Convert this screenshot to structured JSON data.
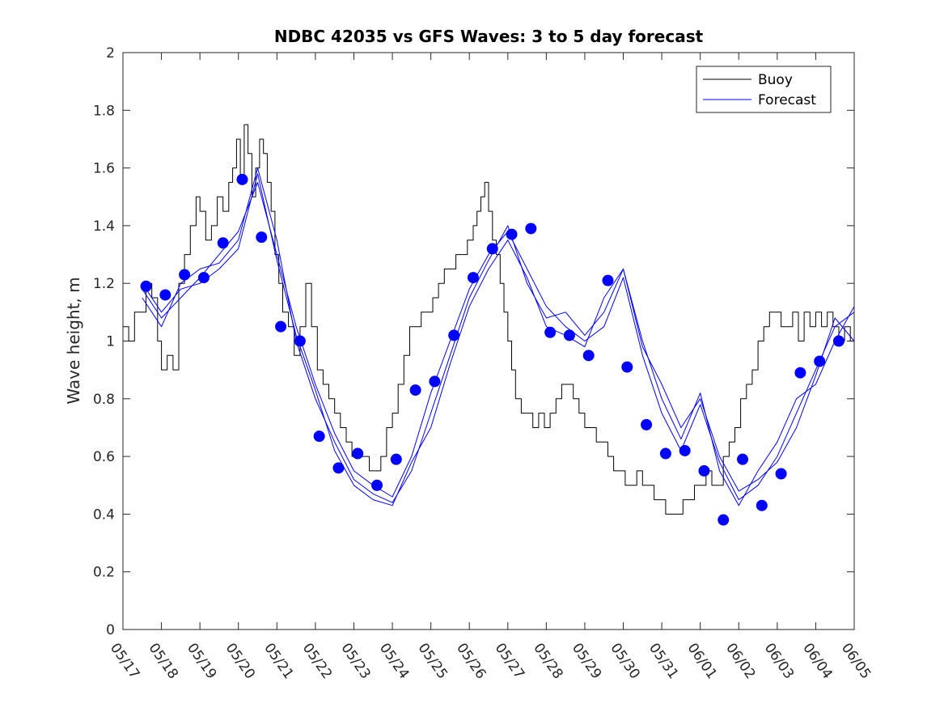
{
  "chart_data": {
    "type": "line",
    "title": "NDBC 42035 vs GFS Waves: 3 to 5 day forecast",
    "xlabel": "",
    "ylabel": "Wave height, m",
    "xlim": [
      "05/17",
      "06/05"
    ],
    "ylim": [
      0,
      2
    ],
    "x_ticks": [
      "05/17",
      "05/18",
      "05/19",
      "05/20",
      "05/21",
      "05/22",
      "05/23",
      "05/24",
      "05/25",
      "05/26",
      "05/27",
      "05/28",
      "05/29",
      "05/30",
      "05/31",
      "06/01",
      "06/02",
      "06/03",
      "06/04",
      "06/05"
    ],
    "y_ticks": [
      "0",
      "0.2",
      "0.4",
      "0.6",
      "0.8",
      "1",
      "1.2",
      "1.4",
      "1.6",
      "1.8",
      "2"
    ],
    "legend": {
      "position": "top-right",
      "entries": [
        "Buoy",
        "Forecast"
      ]
    },
    "colors": {
      "buoy": "#000000",
      "forecast": "#0000ff",
      "markers": "#0000ff"
    },
    "series": [
      {
        "name": "Buoy",
        "x_days": [
          0,
          0.15,
          0.3,
          0.45,
          0.6,
          0.75,
          0.9,
          1.0,
          1.15,
          1.3,
          1.45,
          1.6,
          1.75,
          1.9,
          2.0,
          2.15,
          2.3,
          2.45,
          2.6,
          2.75,
          2.85,
          2.95,
          3.05,
          3.15,
          3.25,
          3.35,
          3.45,
          3.55,
          3.65,
          3.75,
          3.85,
          3.95,
          4.05,
          4.15,
          4.3,
          4.45,
          4.6,
          4.75,
          4.9,
          5.05,
          5.2,
          5.35,
          5.5,
          5.65,
          5.8,
          5.95,
          6.1,
          6.25,
          6.4,
          6.55,
          6.7,
          6.85,
          7.0,
          7.15,
          7.3,
          7.45,
          7.6,
          7.75,
          7.9,
          8.05,
          8.2,
          8.35,
          8.5,
          8.65,
          8.8,
          8.95,
          9.1,
          9.2,
          9.3,
          9.4,
          9.5,
          9.6,
          9.7,
          9.8,
          9.9,
          10.0,
          10.1,
          10.2,
          10.35,
          10.5,
          10.65,
          10.8,
          10.95,
          11.1,
          11.25,
          11.4,
          11.55,
          11.7,
          11.85,
          12.0,
          12.15,
          12.3,
          12.45,
          12.6,
          12.75,
          12.9,
          13.05,
          13.2,
          13.35,
          13.5,
          13.65,
          13.8,
          13.95,
          14.1,
          14.25,
          14.4,
          14.55,
          14.7,
          14.85,
          15.0,
          15.15,
          15.3,
          15.45,
          15.6,
          15.75,
          15.9,
          16.05,
          16.2,
          16.35,
          16.5,
          16.65,
          16.8,
          16.95,
          17.1,
          17.25,
          17.4,
          17.55,
          17.7,
          17.85,
          18.0,
          18.15,
          18.3,
          18.45,
          18.6,
          18.75,
          18.9,
          19.0
        ],
        "values": [
          1.05,
          1.0,
          1.1,
          1.1,
          1.2,
          1.15,
          1.0,
          0.9,
          0.95,
          0.9,
          1.2,
          1.3,
          1.4,
          1.5,
          1.45,
          1.35,
          1.4,
          1.5,
          1.45,
          1.55,
          1.6,
          1.7,
          1.55,
          1.75,
          1.65,
          1.5,
          1.6,
          1.7,
          1.65,
          1.55,
          1.45,
          1.3,
          1.2,
          1.1,
          1.05,
          0.95,
          1.05,
          1.2,
          1.05,
          0.9,
          0.85,
          0.8,
          0.75,
          0.7,
          0.65,
          0.6,
          0.6,
          0.6,
          0.55,
          0.55,
          0.6,
          0.7,
          0.75,
          0.85,
          0.95,
          1.05,
          1.05,
          1.1,
          1.1,
          1.15,
          1.2,
          1.25,
          1.25,
          1.3,
          1.3,
          1.35,
          1.4,
          1.45,
          1.5,
          1.55,
          1.45,
          1.35,
          1.3,
          1.2,
          1.1,
          1.0,
          0.9,
          0.8,
          0.75,
          0.75,
          0.7,
          0.75,
          0.7,
          0.75,
          0.8,
          0.85,
          0.85,
          0.8,
          0.75,
          0.7,
          0.7,
          0.65,
          0.65,
          0.6,
          0.55,
          0.55,
          0.5,
          0.5,
          0.55,
          0.5,
          0.5,
          0.45,
          0.45,
          0.4,
          0.4,
          0.4,
          0.45,
          0.45,
          0.5,
          0.5,
          0.55,
          0.5,
          0.5,
          0.6,
          0.65,
          0.7,
          0.8,
          0.85,
          0.9,
          1.0,
          1.05,
          1.1,
          1.1,
          1.05,
          1.05,
          1.1,
          1.0,
          1.1,
          1.05,
          1.1,
          1.05,
          1.1,
          1.05,
          1.0,
          1.05,
          1.0,
          1.0
        ]
      },
      {
        "name": "Forecast",
        "x_days": [
          0.5,
          1.0,
          1.5,
          2.0,
          2.5,
          3.0,
          3.5,
          4.0,
          4.5,
          5.0,
          5.5,
          6.0,
          6.5,
          7.0,
          7.5,
          8.0,
          8.5,
          9.0,
          9.5,
          10.0,
          10.5,
          11.0,
          11.5,
          12.0,
          12.5,
          13.0,
          13.5,
          14.0,
          14.5,
          15.0,
          15.5,
          16.0,
          16.5,
          17.0,
          17.5,
          18.0,
          18.5,
          19.0
        ],
        "values": [
          1.18,
          1.08,
          1.15,
          1.22,
          1.3,
          1.38,
          1.55,
          1.3,
          1.05,
          0.85,
          0.68,
          0.55,
          0.5,
          0.46,
          0.6,
          0.82,
          1.0,
          1.18,
          1.3,
          1.38,
          1.25,
          1.12,
          1.05,
          1.0,
          1.05,
          1.22,
          0.95,
          0.75,
          0.62,
          0.78,
          0.58,
          0.45,
          0.5,
          0.6,
          0.75,
          0.9,
          1.05,
          1.1
        ]
      },
      {
        "name": "Forecast",
        "x_days": [
          0.5,
          1.0,
          1.5,
          2.0,
          2.5,
          3.0,
          3.5,
          4.0,
          4.5,
          5.0,
          5.5,
          6.0,
          6.5,
          7.0,
          7.5,
          8.0,
          8.5,
          9.0,
          9.5,
          10.0,
          10.5,
          11.0,
          11.5,
          12.0,
          12.5,
          13.0,
          13.5,
          14.0,
          14.5,
          15.0,
          15.5,
          16.0,
          16.5,
          17.0,
          17.5,
          18.0,
          18.5,
          19.0
        ],
        "values": [
          1.15,
          1.05,
          1.2,
          1.25,
          1.27,
          1.35,
          1.6,
          1.35,
          1.0,
          0.8,
          0.65,
          0.52,
          0.47,
          0.44,
          0.55,
          0.75,
          0.95,
          1.15,
          1.28,
          1.4,
          1.2,
          1.08,
          1.1,
          1.02,
          1.1,
          1.25,
          1.0,
          0.8,
          0.66,
          0.82,
          0.55,
          0.43,
          0.55,
          0.65,
          0.8,
          0.85,
          1.0,
          1.12
        ]
      },
      {
        "name": "Forecast",
        "x_days": [
          0.5,
          1.0,
          1.5,
          2.0,
          2.5,
          3.0,
          3.5,
          4.0,
          4.5,
          5.0,
          5.5,
          6.0,
          6.5,
          7.0,
          7.5,
          8.0,
          8.5,
          9.0,
          9.5,
          10.0,
          10.5,
          11.0,
          11.5,
          12.0,
          12.5,
          13.0,
          13.5,
          14.0,
          14.5,
          15.0,
          15.5,
          16.0,
          16.5,
          17.0,
          17.5,
          18.0,
          18.5,
          19.0
        ],
        "values": [
          1.2,
          1.1,
          1.18,
          1.2,
          1.25,
          1.32,
          1.58,
          1.28,
          1.02,
          0.83,
          0.62,
          0.5,
          0.45,
          0.43,
          0.58,
          0.7,
          0.92,
          1.12,
          1.25,
          1.35,
          1.22,
          1.05,
          1.02,
          0.98,
          1.15,
          1.25,
          0.98,
          0.85,
          0.7,
          0.8,
          0.6,
          0.48,
          0.52,
          0.58,
          0.7,
          0.88,
          1.08,
          1.0
        ]
      }
    ],
    "markers": {
      "name": "Forecast points",
      "x_days": [
        0.6,
        1.1,
        1.6,
        2.1,
        2.6,
        3.1,
        3.6,
        4.1,
        4.6,
        5.1,
        5.6,
        6.1,
        6.6,
        7.1,
        7.6,
        8.1,
        8.6,
        9.1,
        9.6,
        10.1,
        10.6,
        11.1,
        11.6,
        12.1,
        12.6,
        13.1,
        13.6,
        14.1,
        14.6,
        15.1,
        15.6,
        16.1,
        16.6,
        17.1,
        17.6,
        18.1,
        18.6
      ],
      "values": [
        1.19,
        1.16,
        1.23,
        1.22,
        1.34,
        1.56,
        1.36,
        1.05,
        1.0,
        0.67,
        0.56,
        0.61,
        0.5,
        0.59,
        0.83,
        0.86,
        1.02,
        1.22,
        1.32,
        1.37,
        1.39,
        1.03,
        1.02,
        0.95,
        1.21,
        0.91,
        0.71,
        0.61,
        0.62,
        0.55,
        0.38,
        0.59,
        0.43,
        0.54,
        0.89,
        0.93,
        1.0
      ]
    }
  }
}
